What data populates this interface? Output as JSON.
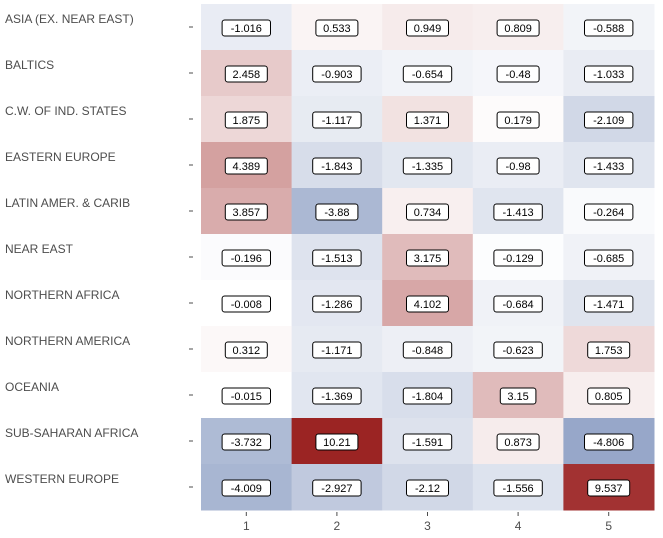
{
  "chart_data": {
    "type": "heatmap",
    "title": "",
    "xlabel": "",
    "ylabel": "",
    "x": [
      "1",
      "2",
      "3",
      "4",
      "5"
    ],
    "rows": [
      "ASIA (EX. NEAR EAST)",
      "BALTICS",
      "C.W. OF IND. STATES",
      "EASTERN EUROPE",
      "LATIN AMER. & CARIB",
      "NEAR EAST",
      "NORTHERN AFRICA",
      "NORTHERN AMERICA",
      "OCEANIA",
      "SUB-SAHARAN AFRICA",
      "WESTERN EUROPE"
    ],
    "values": [
      [
        -1.016,
        0.533,
        0.949,
        0.809,
        -0.588
      ],
      [
        2.458,
        -0.903,
        -0.654,
        -0.48,
        -1.033
      ],
      [
        1.875,
        -1.117,
        1.371,
        0.179,
        -2.109
      ],
      [
        4.389,
        -1.843,
        -1.335,
        -0.98,
        -1.433
      ],
      [
        3.857,
        -3.88,
        0.734,
        -1.413,
        -0.264
      ],
      [
        -0.196,
        -1.513,
        3.175,
        -0.129,
        -0.685
      ],
      [
        -0.008,
        -1.286,
        4.102,
        -0.684,
        -1.471
      ],
      [
        0.312,
        -1.171,
        -0.848,
        -0.623,
        1.753
      ],
      [
        -0.015,
        -1.369,
        -1.804,
        3.15,
        0.805
      ],
      [
        -3.732,
        10.21,
        -1.591,
        0.873,
        -4.806
      ],
      [
        -4.009,
        -2.927,
        -2.12,
        -1.556,
        9.537
      ]
    ],
    "color_scale": {
      "low": "#97a7c9",
      "mid": "#ffffff",
      "high": "#9b2423",
      "min": -4.806,
      "max": 10.21
    },
    "legend": "none"
  }
}
